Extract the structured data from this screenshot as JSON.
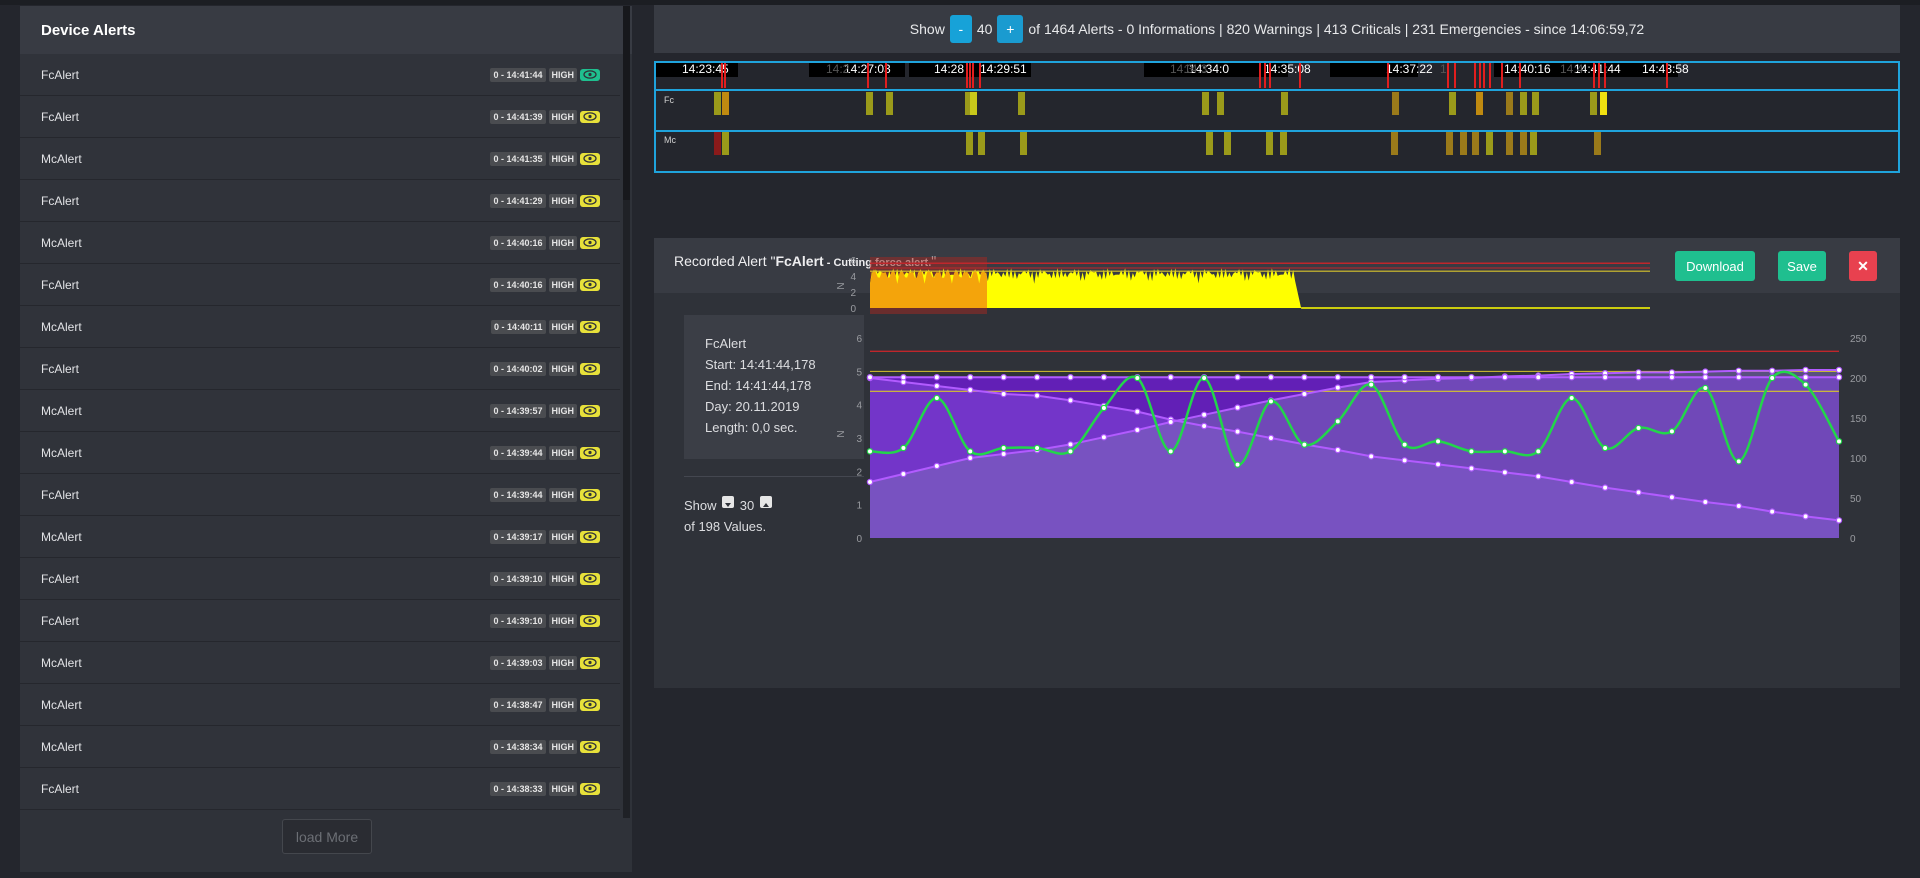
{
  "left_panel": {
    "title": "Device Alerts",
    "load_more": "load More",
    "alerts": [
      {
        "name": "FcAlert",
        "time": "0 - 14:41:44",
        "level": "HIGH",
        "active": true
      },
      {
        "name": "FcAlert",
        "time": "0 - 14:41:39",
        "level": "HIGH",
        "active": false
      },
      {
        "name": "McAlert",
        "time": "0 - 14:41:35",
        "level": "HIGH",
        "active": false
      },
      {
        "name": "FcAlert",
        "time": "0 - 14:41:29",
        "level": "HIGH",
        "active": false
      },
      {
        "name": "McAlert",
        "time": "0 - 14:40:16",
        "level": "HIGH",
        "active": false
      },
      {
        "name": "FcAlert",
        "time": "0 - 14:40:16",
        "level": "HIGH",
        "active": false
      },
      {
        "name": "McAlert",
        "time": "0 - 14:40:11",
        "level": "HIGH",
        "active": false
      },
      {
        "name": "FcAlert",
        "time": "0 - 14:40:02",
        "level": "HIGH",
        "active": false
      },
      {
        "name": "McAlert",
        "time": "0 - 14:39:57",
        "level": "HIGH",
        "active": false
      },
      {
        "name": "McAlert",
        "time": "0 - 14:39:44",
        "level": "HIGH",
        "active": false
      },
      {
        "name": "FcAlert",
        "time": "0 - 14:39:44",
        "level": "HIGH",
        "active": false
      },
      {
        "name": "McAlert",
        "time": "0 - 14:39:17",
        "level": "HIGH",
        "active": false
      },
      {
        "name": "FcAlert",
        "time": "0 - 14:39:10",
        "level": "HIGH",
        "active": false
      },
      {
        "name": "FcAlert",
        "time": "0 - 14:39:10",
        "level": "HIGH",
        "active": false
      },
      {
        "name": "McAlert",
        "time": "0 - 14:39:03",
        "level": "HIGH",
        "active": false
      },
      {
        "name": "McAlert",
        "time": "0 - 14:38:47",
        "level": "HIGH",
        "active": false
      },
      {
        "name": "McAlert",
        "time": "0 - 14:38:34",
        "level": "HIGH",
        "active": false
      },
      {
        "name": "FcAlert",
        "time": "0 - 14:38:33",
        "level": "HIGH",
        "active": false
      }
    ]
  },
  "summary": {
    "show_label": "Show",
    "minus_label": "-",
    "count": "40",
    "plus_label": "+",
    "text": "of 1464 Alerts - 0 Informations | 820 Warnings | 413 Criticals | 231 Emergencies - since 14:06:59,72"
  },
  "timeline": {
    "time_labels": [
      "14:23:45",
      "14:27:03",
      "14:28",
      "14:29:51",
      "14:34:0",
      "14:35:08",
      "14:37:22",
      "14:40:16",
      "14:41:44",
      "14:43:58"
    ],
    "faded_labels": [
      "14:2",
      "14:3",
      "14:3",
      "14:4",
      "1"
    ],
    "rows": [
      "Fc",
      "Mc"
    ]
  },
  "recorded": {
    "title_prefix": "Recorded Alert \"",
    "alert_name": "FcAlert",
    "alert_desc": " - Cutting force alert.",
    "title_suffix": "\"",
    "download": "Download",
    "save": "Save",
    "close": "✕",
    "info": {
      "name": "FcAlert",
      "start": "Start: 14:41:44,178",
      "end": "End: 14:41:44,178",
      "day": "Day: 20.11.2019",
      "length": "Length: 0,0 sec."
    },
    "show_label": "Show",
    "show_count": "30",
    "of_values": "of 198 Values."
  },
  "chart_data": [
    {
      "type": "area",
      "ylabel": "N",
      "y_ticks": [
        "6",
        "4",
        "2",
        "0"
      ],
      "ylim": [
        0,
        6
      ],
      "series_colors": {
        "signal": "#ffff00",
        "highlight": "#f4a40b",
        "threshold_high": "#c0262b",
        "threshold_low": "#d7c52c"
      },
      "thresholds": [
        5.6,
        5.0,
        4.6
      ],
      "highlight_end_fraction": 0.15
    },
    {
      "type": "line",
      "ylabel": "N",
      "y_ticks_left": [
        "6",
        "5",
        "4",
        "3",
        "2",
        "1",
        "0"
      ],
      "y_ticks_right": [
        "250",
        "200",
        "150",
        "100",
        "50",
        "0"
      ],
      "ylim_left": [
        0,
        6
      ],
      "ylim_right": [
        0,
        250
      ],
      "thresholds_left": [
        5.6,
        4.4
      ],
      "series": [
        {
          "name": "",
          "color": "#22d64a",
          "axis": "left",
          "values": [
            2.6,
            2.7,
            4.2,
            2.6,
            2.7,
            2.7,
            2.6,
            3.9,
            4.8,
            2.6,
            4.8,
            2.2,
            4.1,
            2.8,
            3.5,
            4.6,
            2.8,
            2.9,
            2.6,
            2.6,
            2.6,
            4.2,
            2.7,
            3.3,
            3.2,
            4.5,
            2.3,
            4.8,
            4.6,
            2.9
          ]
        },
        {
          "name": "",
          "color": "#b25bff",
          "axis": "right",
          "values": [
            200,
            195,
            190,
            185,
            180,
            178,
            172,
            165,
            158,
            148,
            140,
            133,
            125,
            117,
            110,
            102,
            97,
            92,
            87,
            82,
            77,
            70,
            63,
            57,
            51,
            45,
            40,
            33,
            27,
            22
          ]
        },
        {
          "name": "",
          "color": "#b25bff",
          "axis": "right",
          "values": [
            70,
            80,
            90,
            100,
            105,
            110,
            117,
            126,
            135,
            145,
            154,
            163,
            172,
            180,
            188,
            195,
            197,
            199,
            200,
            202,
            203,
            205,
            206,
            207,
            207,
            208,
            209,
            209,
            210,
            210
          ]
        },
        {
          "name": "",
          "color": "#b25bff",
          "axis": "right",
          "values": [
            201,
            201,
            201,
            201,
            201,
            201,
            201,
            201,
            201,
            201,
            201,
            201,
            201,
            201,
            201,
            201,
            201,
            201,
            201,
            201,
            201,
            201,
            201,
            201,
            201,
            201,
            201,
            201,
            201,
            201
          ]
        }
      ]
    }
  ],
  "colors": {
    "background": "#24262d",
    "panel": "#2f3239",
    "header": "#383b43",
    "accent_blue": "#17a2d8",
    "success": "#1fbf8f",
    "danger": "#e8414f",
    "eye_badge": "#e7e13a"
  }
}
